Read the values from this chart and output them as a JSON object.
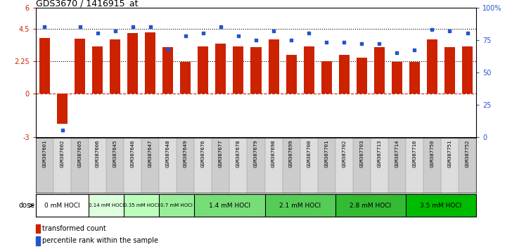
{
  "title": "GDS3670 / 1416915_at",
  "samples": [
    "GSM387601",
    "GSM387602",
    "GSM387605",
    "GSM387606",
    "GSM387645",
    "GSM387646",
    "GSM387647",
    "GSM387648",
    "GSM387649",
    "GSM387676",
    "GSM387677",
    "GSM387678",
    "GSM387679",
    "GSM387698",
    "GSM387699",
    "GSM387700",
    "GSM387701",
    "GSM387702",
    "GSM387703",
    "GSM387713",
    "GSM387714",
    "GSM387716",
    "GSM387750",
    "GSM387751",
    "GSM387752"
  ],
  "bar_values": [
    3.9,
    -2.1,
    3.85,
    3.3,
    3.8,
    4.2,
    4.25,
    3.25,
    2.2,
    3.3,
    3.5,
    3.3,
    3.25,
    3.8,
    2.7,
    3.3,
    2.25,
    2.7,
    2.5,
    3.25,
    2.2,
    2.2,
    3.8,
    3.25,
    3.3
  ],
  "dot_values": [
    85,
    5,
    85,
    80,
    82,
    85,
    85,
    68,
    78,
    80,
    85,
    78,
    75,
    82,
    75,
    80,
    73,
    73,
    72,
    72,
    65,
    67,
    83,
    82,
    80
  ],
  "bar_color": "#CC2200",
  "dot_color": "#2255CC",
  "ylim_left": [
    -3,
    6
  ],
  "ylim_right": [
    0,
    100
  ],
  "yticks_left": [
    -3,
    0,
    2.25,
    4.5,
    6
  ],
  "yticks_right": [
    0,
    25,
    50,
    75,
    100
  ],
  "ytick_labels_left": [
    "-3",
    "0",
    "2.25",
    "4.5",
    "6"
  ],
  "ytick_labels_right": [
    "0",
    "25",
    "50",
    "75",
    "100%"
  ],
  "dose_groups": [
    {
      "label": "0 mM HOCl",
      "start": 0,
      "end": 3,
      "color": "#FFFFFF"
    },
    {
      "label": "0.14 mM HOCl",
      "start": 3,
      "end": 5,
      "color": "#DDFFDD"
    },
    {
      "label": "0.35 mM HOCl",
      "start": 5,
      "end": 7,
      "color": "#BBFFBB"
    },
    {
      "label": "0.7 mM HOCl",
      "start": 7,
      "end": 9,
      "color": "#99EE99"
    },
    {
      "label": "1.4 mM HOCl",
      "start": 9,
      "end": 13,
      "color": "#77DD77"
    },
    {
      "label": "2.1 mM HOCl",
      "start": 13,
      "end": 17,
      "color": "#55CC55"
    },
    {
      "label": "2.8 mM HOCl",
      "start": 17,
      "end": 21,
      "color": "#33BB33"
    },
    {
      "label": "3.5 mM HOCl",
      "start": 21,
      "end": 25,
      "color": "#00BB00"
    }
  ],
  "legend_bar_label": "transformed count",
  "legend_dot_label": "percentile rank within the sample",
  "dose_label": "dose",
  "background_color": "#FFFFFF",
  "sample_col_light": "#DDDDDD",
  "sample_col_dark": "#CCCCCC"
}
